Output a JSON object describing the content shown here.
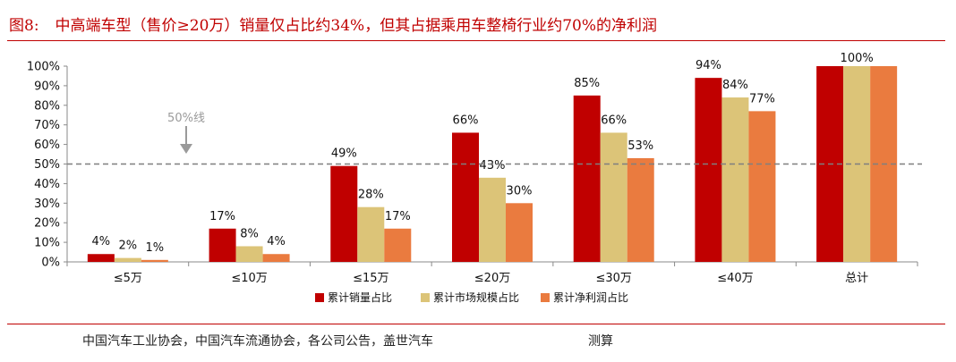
{
  "header": {
    "figure_label": "图8:",
    "title": "中高端车型（售价≥20万）销量仅占比约34%，但其占据乘用车整椅行业约70%的净利润"
  },
  "footer": {
    "source": "中国汽车工业协会，中国汽车流通协会，各公司公告，盖世汽车",
    "note": "测算"
  },
  "chart_data": {
    "type": "bar",
    "categories": [
      "≤5万",
      "≤10万",
      "≤15万",
      "≤20万",
      "≤30万",
      "≤40万",
      "总计"
    ],
    "series": [
      {
        "name": "累计销量占比",
        "values": [
          4,
          17,
          49,
          66,
          85,
          94,
          100
        ],
        "color": "#c00000"
      },
      {
        "name": "累计市场规模占比",
        "values": [
          2,
          8,
          28,
          43,
          66,
          84,
          100
        ],
        "color": "#dcc478"
      },
      {
        "name": "累计净利润占比",
        "values": [
          1,
          4,
          17,
          30,
          53,
          77,
          100
        ],
        "color": "#ea7b3f"
      }
    ],
    "data_labels": [
      [
        "4%",
        "2%",
        "1%"
      ],
      [
        "17%",
        "8%",
        "4%"
      ],
      [
        "49%",
        "28%",
        "17%"
      ],
      [
        "66%",
        "43%",
        "30%"
      ],
      [
        "85%",
        "66%",
        "53%"
      ],
      [
        "94%",
        "84%",
        "77%"
      ],
      [
        "100%"
      ]
    ],
    "yticks": [
      "0%",
      "10%",
      "20%",
      "30%",
      "40%",
      "50%",
      "60%",
      "70%",
      "80%",
      "90%",
      "100%"
    ],
    "ylim": [
      0,
      100
    ],
    "reference_line": {
      "value": 50,
      "label": "50%线"
    },
    "legend_position": "bottom"
  }
}
